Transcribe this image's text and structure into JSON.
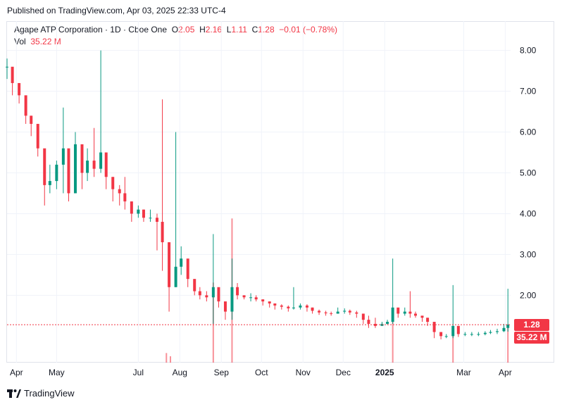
{
  "header": {
    "published": "Published on TradingView.com, Apr 03, 2025 22:33 UTC-4"
  },
  "legend": {
    "symbol": "Agape ATP Corporation · 1D · Cboe One",
    "o_label": "O",
    "o_value": "2.05",
    "h_label": "H",
    "h_value": "2.16",
    "l_label": "L",
    "l_value": "1.11",
    "c_label": "C",
    "c_value": "1.28",
    "change": "−0.01 (−0.78%)",
    "vol_label": "Vol",
    "vol_value": "35.22 M"
  },
  "badges": {
    "price": "1.28",
    "volume": "35.22 M"
  },
  "footer": {
    "brand": "TradingView"
  },
  "colors": {
    "up": "#089981",
    "down": "#f23645",
    "grid": "#f0f3fa",
    "text": "#131722"
  },
  "chart_data": {
    "type": "candlestick",
    "y_ticks": [
      "8.00",
      "7.00",
      "6.00",
      "5.00",
      "4.00",
      "3.00",
      "2.00"
    ],
    "y_tick_values": [
      8,
      7,
      6,
      5,
      4,
      3,
      2
    ],
    "ylim": [
      0.35,
      8.2
    ],
    "x_tick_labels": [
      "Apr",
      "May",
      "Jul",
      "Aug",
      "Sep",
      "Oct",
      "Nov",
      "Dec",
      "2025",
      "Mar",
      "Apr"
    ],
    "x_tick_dates": [
      "2024-04-01",
      "2024-05-01",
      "2024-07-01",
      "2024-08-01",
      "2024-09-01",
      "2024-10-01",
      "2024-11-01",
      "2024-12-01",
      "2025-01-01",
      "2025-03-01",
      "2025-04-01"
    ],
    "xlim": [
      "2024-03-25",
      "2025-04-05"
    ],
    "last_price": 1.28,
    "last_volume": "35.22 M",
    "series": [
      {
        "name": "price",
        "fields": [
          "date",
          "close",
          "high",
          "low"
        ],
        "points": [
          [
            "2024-03-25",
            7.6,
            7.8,
            7.3
          ],
          [
            "2024-03-29",
            7.2,
            7.5,
            6.9
          ],
          [
            "2024-04-03",
            6.9,
            7.2,
            6.7
          ],
          [
            "2024-04-08",
            6.4,
            6.7,
            6.2
          ],
          [
            "2024-04-12",
            6.2,
            6.4,
            5.9
          ],
          [
            "2024-04-17",
            5.6,
            6.0,
            5.4
          ],
          [
            "2024-04-22",
            4.7,
            5.2,
            4.2
          ],
          [
            "2024-04-26",
            4.8,
            5.2,
            4.5
          ],
          [
            "2024-05-01",
            5.2,
            5.3,
            4.6
          ],
          [
            "2024-05-06",
            5.6,
            6.6,
            4.5
          ],
          [
            "2024-05-10",
            4.5,
            5.0,
            4.3
          ],
          [
            "2024-05-15",
            5.7,
            6.0,
            4.9
          ],
          [
            "2024-05-20",
            5.0,
            5.3,
            4.6
          ],
          [
            "2024-05-24",
            5.3,
            5.6,
            4.8
          ],
          [
            "2024-05-29",
            5.1,
            6.1,
            4.9
          ],
          [
            "2024-06-03",
            5.5,
            8.0,
            5.0
          ],
          [
            "2024-06-07",
            4.9,
            5.3,
            4.6
          ],
          [
            "2024-06-12",
            4.6,
            4.9,
            4.3
          ],
          [
            "2024-06-17",
            4.5,
            4.7,
            4.2
          ],
          [
            "2024-06-21",
            4.3,
            4.9,
            4.1
          ],
          [
            "2024-06-26",
            4.0,
            4.3,
            3.8
          ],
          [
            "2024-07-01",
            4.1,
            4.2,
            3.9
          ],
          [
            "2024-07-05",
            3.9,
            4.1,
            3.8
          ],
          [
            "2024-07-10",
            3.9,
            4.1,
            3.8
          ],
          [
            "2024-07-15",
            3.8,
            4.0,
            3.1
          ],
          [
            "2024-07-19",
            3.3,
            6.8,
            2.6
          ],
          [
            "2024-07-24",
            2.2,
            2.6,
            1.6
          ],
          [
            "2024-07-29",
            2.7,
            6.0,
            2.2
          ],
          [
            "2024-08-02",
            2.9,
            3.2,
            2.5
          ],
          [
            "2024-08-07",
            2.4,
            2.6,
            2.2
          ],
          [
            "2024-08-12",
            2.1,
            2.4,
            2.0
          ],
          [
            "2024-08-16",
            2.0,
            2.2,
            1.9
          ],
          [
            "2024-08-21",
            1.95,
            2.1,
            1.85
          ],
          [
            "2024-08-26",
            2.2,
            3.5,
            1.3
          ],
          [
            "2024-08-30",
            1.85,
            2.0,
            1.7
          ],
          [
            "2024-09-04",
            1.6,
            1.8,
            1.4
          ],
          [
            "2024-09-09",
            2.2,
            2.9,
            1.4
          ],
          [
            "2024-09-13",
            2.0,
            2.3,
            1.9
          ],
          [
            "2024-09-18",
            1.95,
            2.0,
            1.9
          ],
          [
            "2024-09-23",
            1.95,
            2.05,
            1.85
          ],
          [
            "2024-09-27",
            1.9,
            2.0,
            1.85
          ],
          [
            "2024-10-02",
            1.85,
            1.9,
            1.75
          ],
          [
            "2024-10-07",
            1.8,
            1.85,
            1.7
          ],
          [
            "2024-10-11",
            1.75,
            1.8,
            1.65
          ],
          [
            "2024-10-16",
            1.72,
            1.78,
            1.65
          ],
          [
            "2024-10-21",
            1.68,
            1.75,
            1.6
          ],
          [
            "2024-10-25",
            1.7,
            2.2,
            1.65
          ],
          [
            "2024-10-30",
            1.75,
            1.8,
            1.65
          ],
          [
            "2024-11-04",
            1.7,
            1.78,
            1.6
          ],
          [
            "2024-11-08",
            1.62,
            1.7,
            1.55
          ],
          [
            "2024-11-13",
            1.58,
            1.65,
            1.52
          ],
          [
            "2024-11-18",
            1.56,
            1.62,
            1.5
          ],
          [
            "2024-11-22",
            1.55,
            1.6,
            1.5
          ],
          [
            "2024-11-27",
            1.6,
            1.7,
            1.55
          ],
          [
            "2024-12-02",
            1.62,
            1.68,
            1.55
          ],
          [
            "2024-12-06",
            1.58,
            1.65,
            1.52
          ],
          [
            "2024-12-11",
            1.55,
            1.62,
            1.45
          ],
          [
            "2024-12-16",
            1.4,
            1.55,
            1.3
          ],
          [
            "2024-12-20",
            1.3,
            1.5,
            1.2
          ],
          [
            "2024-12-25",
            1.25,
            1.45,
            1.2
          ],
          [
            "2024-12-30",
            1.3,
            1.35,
            1.25
          ],
          [
            "2025-01-03",
            1.35,
            1.4,
            1.28
          ],
          [
            "2025-01-07",
            1.7,
            2.9,
            1.3
          ],
          [
            "2025-01-11",
            1.55,
            1.65,
            1.45
          ],
          [
            "2025-01-16",
            1.6,
            1.7,
            1.5
          ],
          [
            "2025-01-20",
            1.55,
            2.1,
            1.45
          ],
          [
            "2025-01-24",
            1.5,
            1.6,
            1.45
          ],
          [
            "2025-01-29",
            1.45,
            1.5,
            1.35
          ],
          [
            "2025-02-02",
            1.35,
            1.45,
            1.25
          ],
          [
            "2025-02-07",
            1.1,
            1.3,
            0.95
          ],
          [
            "2025-02-12",
            1.0,
            1.05,
            0.92
          ],
          [
            "2025-02-16",
            1.0,
            1.05,
            0.95
          ],
          [
            "2025-02-21",
            1.25,
            2.25,
            0.95
          ],
          [
            "2025-02-25",
            1.05,
            1.15,
            0.98
          ],
          [
            "2025-03-02",
            1.05,
            1.1,
            1.0
          ],
          [
            "2025-03-07",
            1.05,
            1.1,
            1.0
          ],
          [
            "2025-03-12",
            1.05,
            1.1,
            1.0
          ],
          [
            "2025-03-17",
            1.08,
            1.12,
            1.02
          ],
          [
            "2025-03-21",
            1.1,
            1.15,
            1.05
          ],
          [
            "2025-03-26",
            1.12,
            1.18,
            1.05
          ],
          [
            "2025-03-31",
            1.2,
            1.3,
            1.1
          ],
          [
            "2025-04-03",
            1.28,
            2.16,
            1.11
          ]
        ]
      },
      {
        "name": "volume",
        "fields": [
          "date",
          "level"
        ],
        "points": [
          [
            "2024-07-22",
            0.03
          ],
          [
            "2024-07-25",
            0.02
          ],
          [
            "2024-08-26",
            0.25
          ],
          [
            "2024-09-09",
            0.45
          ],
          [
            "2025-01-07",
            0.13
          ],
          [
            "2025-02-21",
            0.09
          ],
          [
            "2025-04-03",
            0.12
          ]
        ]
      }
    ]
  }
}
